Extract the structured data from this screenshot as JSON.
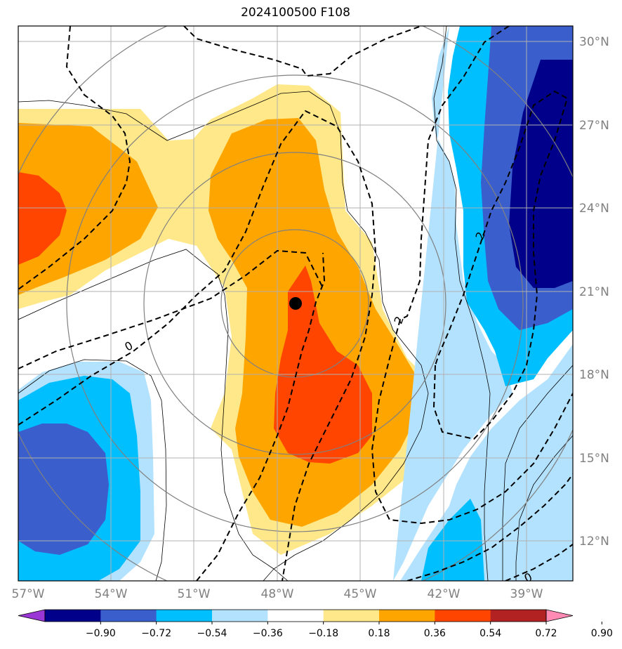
{
  "title": "2024100500 F108",
  "map": {
    "lon_labels": [
      "57°W",
      "54°W",
      "51°W",
      "48°W",
      "45°W",
      "42°W",
      "39°W"
    ],
    "lat_labels": [
      "30°N",
      "27°N",
      "24°N",
      "21°N",
      "18°N",
      "15°N",
      "12°N"
    ],
    "contour_labels": [
      "0",
      "2",
      "2",
      "0"
    ],
    "storm_center": {
      "lon": -47.7,
      "lat": 20.5
    }
  },
  "colorbar": {
    "ticks": [
      "−0.90",
      "−0.72",
      "−0.54",
      "−0.36",
      "−0.18",
      "0.18",
      "0.36",
      "0.54",
      "0.72",
      "0.90"
    ],
    "colors": [
      "#9a35d6",
      "#00008b",
      "#3a5fcd",
      "#00bfff",
      "#b3e2ff",
      "#ffffff",
      "#ffe88a",
      "#ffa500",
      "#ff4500",
      "#b22222",
      "#ff8ab4"
    ]
  }
}
